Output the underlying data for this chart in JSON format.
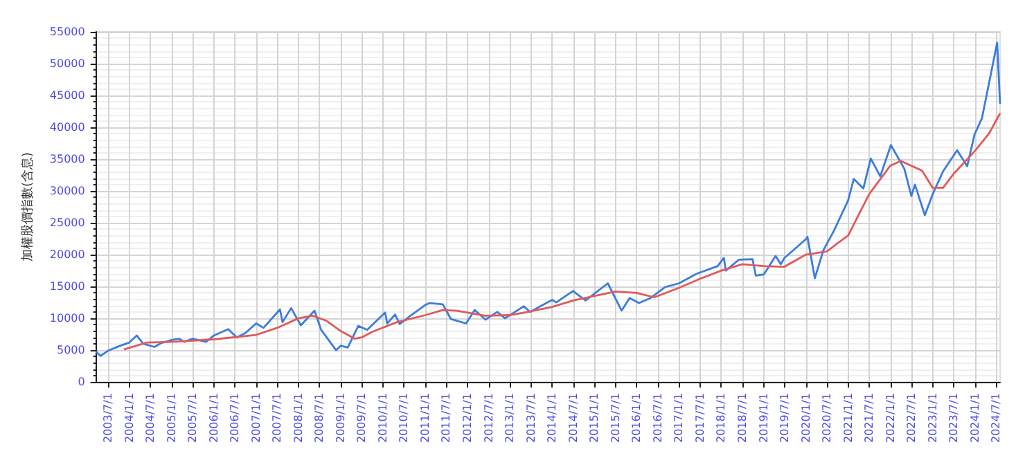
{
  "chart_data": {
    "type": "line",
    "ylabel": "加權股價指數(含息)",
    "xlim": [
      "2003-03-20",
      "2024-08-05"
    ],
    "ylim": [
      0,
      55000
    ],
    "yticks": [
      0,
      5000,
      10000,
      15000,
      20000,
      25000,
      30000,
      35000,
      40000,
      45000,
      50000,
      55000
    ],
    "grid": true,
    "xticks": [
      {
        "value": "2003-07-01",
        "label": "2003/7/1"
      },
      {
        "value": "2004-01-01",
        "label": "2004/1/1"
      },
      {
        "value": "2004-07-01",
        "label": "2004/7/1"
      },
      {
        "value": "2005-01-01",
        "label": "2005/1/1"
      },
      {
        "value": "2005-07-01",
        "label": "2005/7/1"
      },
      {
        "value": "2006-01-01",
        "label": "2006/1/1"
      },
      {
        "value": "2006-07-01",
        "label": "2006/7/1"
      },
      {
        "value": "2007-01-01",
        "label": "2007/1/1"
      },
      {
        "value": "2007-07-01",
        "label": "2007/7/1"
      },
      {
        "value": "2008-01-01",
        "label": "2008/1/1"
      },
      {
        "value": "2008-07-01",
        "label": "2008/7/1"
      },
      {
        "value": "2009-01-01",
        "label": "2009/1/1"
      },
      {
        "value": "2009-07-01",
        "label": "2009/7/1"
      },
      {
        "value": "2010-01-01",
        "label": "2010/1/1"
      },
      {
        "value": "2010-07-01",
        "label": "2010/7/1"
      },
      {
        "value": "2011-01-01",
        "label": "2011/1/1"
      },
      {
        "value": "2011-07-01",
        "label": "2011/7/1"
      },
      {
        "value": "2012-01-01",
        "label": "2012/1/1"
      },
      {
        "value": "2012-07-01",
        "label": "2012/7/1"
      },
      {
        "value": "2013-01-01",
        "label": "2013/1/1"
      },
      {
        "value": "2013-07-01",
        "label": "2013/7/1"
      },
      {
        "value": "2014-01-01",
        "label": "2014/1/1"
      },
      {
        "value": "2014-07-01",
        "label": "2014/7/1"
      },
      {
        "value": "2015-01-01",
        "label": "2015/1/1"
      },
      {
        "value": "2015-07-01",
        "label": "2015/7/1"
      },
      {
        "value": "2016-01-01",
        "label": "2016/1/1"
      },
      {
        "value": "2016-07-01",
        "label": "2016/7/1"
      },
      {
        "value": "2017-01-01",
        "label": "2017/1/1"
      },
      {
        "value": "2017-07-01",
        "label": "2017/7/1"
      },
      {
        "value": "2018-01-01",
        "label": "2018/1/1"
      },
      {
        "value": "2018-07-01",
        "label": "2018/7/1"
      },
      {
        "value": "2019-01-01",
        "label": "2019/1/1"
      },
      {
        "value": "2019-07-01",
        "label": "2019/7/1"
      },
      {
        "value": "2020-01-01",
        "label": "2020/1/1"
      },
      {
        "value": "2020-07-01",
        "label": "2020/7/1"
      },
      {
        "value": "2021-01-01",
        "label": "2021/1/1"
      },
      {
        "value": "2021-07-01",
        "label": "2021/7/1"
      },
      {
        "value": "2022-01-01",
        "label": "2022/1/1"
      },
      {
        "value": "2022-07-01",
        "label": "2022/7/1"
      },
      {
        "value": "2023-01-01",
        "label": "2023/1/1"
      },
      {
        "value": "2023-07-01",
        "label": "2023/7/1"
      },
      {
        "value": "2024-01-01",
        "label": "2024/1/1"
      },
      {
        "value": "2024-07-01",
        "label": "2024/7/1"
      }
    ],
    "series": [
      {
        "color": "#3c7ddc",
        "x": [
          "2003-03-20",
          "2003-04-28",
          "2003-07-01",
          "2003-10-01",
          "2004-01-01",
          "2004-03-05",
          "2004-05-01",
          "2004-08-05",
          "2004-10-01",
          "2005-01-01",
          "2005-03-08",
          "2005-04-20",
          "2005-07-01",
          "2005-10-25",
          "2006-01-01",
          "2006-05-05",
          "2006-07-17",
          "2006-10-01",
          "2007-01-01",
          "2007-03-05",
          "2007-07-26",
          "2007-08-17",
          "2007-10-30",
          "2008-01-22",
          "2008-05-19",
          "2008-07-15",
          "2008-11-21",
          "2009-01-01",
          "2009-03-02",
          "2009-06-01",
          "2009-08-17",
          "2010-01-19",
          "2010-02-06",
          "2010-04-15",
          "2010-05-25",
          "2010-09-01",
          "2011-01-01",
          "2011-02-08",
          "2011-06-01",
          "2011-08-10",
          "2011-12-19",
          "2012-03-02",
          "2012-06-04",
          "2012-09-14",
          "2012-11-20",
          "2013-05-01",
          "2013-06-24",
          "2013-10-01",
          "2014-01-01",
          "2014-02-05",
          "2014-06-30",
          "2014-10-16",
          "2015-04-27",
          "2015-08-24",
          "2015-11-01",
          "2016-01-21",
          "2016-05-01",
          "2016-09-01",
          "2017-01-01",
          "2017-06-01",
          "2017-12-01",
          "2018-01-23",
          "2018-02-09",
          "2018-06-01",
          "2018-09-28",
          "2018-10-26",
          "2019-01-04",
          "2019-04-15",
          "2019-05-30",
          "2019-07-01",
          "2019-12-31",
          "2020-01-15",
          "2020-03-19",
          "2020-06-01",
          "2020-09-01",
          "2020-12-31",
          "2021-02-18",
          "2021-05-12",
          "2021-07-15",
          "2021-10-05",
          "2022-01-05",
          "2022-05-01",
          "2022-07-01",
          "2022-08-01",
          "2022-10-25",
          "2023-01-01",
          "2023-04-01",
          "2023-07-31",
          "2023-10-26",
          "2023-12-29",
          "2024-03-01",
          "2024-07-11",
          "2024-08-05"
        ],
        "values": [
          4800,
          4100,
          4900,
          5600,
          6200,
          7300,
          6000,
          5500,
          6100,
          6600,
          6800,
          6300,
          6800,
          6300,
          7300,
          8300,
          7000,
          7700,
          9200,
          8500,
          11400,
          9400,
          11600,
          8900,
          11200,
          8200,
          5000,
          5700,
          5400,
          8800,
          8200,
          10900,
          9200,
          10600,
          9100,
          10500,
          12100,
          12400,
          12200,
          9900,
          9200,
          11300,
          9800,
          11000,
          10000,
          11900,
          11000,
          12000,
          12900,
          12500,
          14300,
          12800,
          15500,
          11200,
          13200,
          12400,
          13200,
          14900,
          15500,
          17000,
          18200,
          19500,
          17500,
          19200,
          19300,
          16700,
          16900,
          19800,
          18500,
          19500,
          22400,
          22800,
          16300,
          20700,
          23800,
          28500,
          31900,
          30400,
          35100,
          32300,
          37200,
          33500,
          29200,
          31000,
          26200,
          29500,
          33100,
          36400,
          33900,
          38900,
          41400,
          53300,
          43700
        ]
      },
      {
        "color": "#e05a5a",
        "x": [
          "2003-11-15",
          "2004-06-01",
          "2005-01-01",
          "2006-01-01",
          "2007-01-01",
          "2007-07-01",
          "2008-01-01",
          "2008-05-01",
          "2008-09-01",
          "2009-01-01",
          "2009-05-01",
          "2009-07-01",
          "2009-10-01",
          "2010-05-01",
          "2011-01-01",
          "2011-06-01",
          "2011-10-01",
          "2012-06-01",
          "2013-01-01",
          "2013-07-01",
          "2014-01-01",
          "2014-07-01",
          "2015-07-01",
          "2016-01-01",
          "2016-06-01",
          "2017-01-01",
          "2017-07-01",
          "2018-01-01",
          "2018-07-01",
          "2019-01-01",
          "2019-07-01",
          "2020-01-01",
          "2020-07-01",
          "2020-10-01",
          "2021-01-01",
          "2021-07-01",
          "2022-01-01",
          "2022-04-01",
          "2022-10-01",
          "2023-01-01",
          "2023-04-01",
          "2023-07-01",
          "2024-01-01",
          "2024-05-01",
          "2024-08-05"
        ],
        "values": [
          5100,
          6200,
          6300,
          6700,
          7400,
          8500,
          10000,
          10400,
          9600,
          8000,
          6800,
          7000,
          7900,
          9400,
          10500,
          11300,
          11200,
          10400,
          10500,
          11100,
          11800,
          12800,
          14200,
          14000,
          13300,
          14800,
          16200,
          17500,
          18500,
          18200,
          18100,
          20000,
          20500,
          21800,
          23000,
          29500,
          34000,
          34700,
          33200,
          30500,
          30500,
          32700,
          36300,
          39000,
          42200
        ]
      }
    ]
  }
}
